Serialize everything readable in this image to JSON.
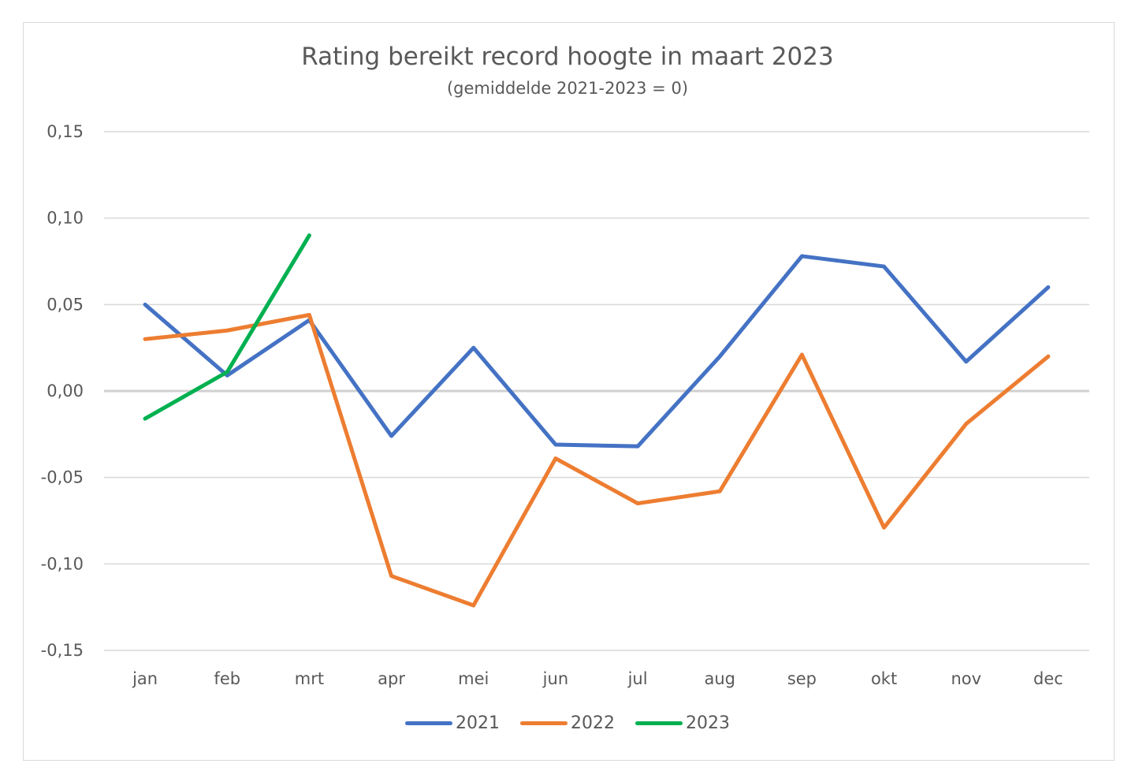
{
  "chart_data": {
    "type": "line",
    "title": "Rating bereikt record hoogte in maart 2023",
    "subtitle": "(gemiddelde 2021-2023 = 0)",
    "categories": [
      "jan",
      "feb",
      "mrt",
      "apr",
      "mei",
      "jun",
      "jul",
      "aug",
      "sep",
      "okt",
      "nov",
      "dec"
    ],
    "ylim": [
      -0.15,
      0.15
    ],
    "yticks": [
      0.15,
      0.1,
      0.05,
      0.0,
      -0.05,
      -0.1,
      -0.15
    ],
    "ytick_labels": [
      "0,15",
      "0,10",
      "0,05",
      "0,00",
      "-0,05",
      "-0,10",
      "-0,15"
    ],
    "grid": true,
    "legend_position": "bottom",
    "series": [
      {
        "name": "2021",
        "color": "#4472c4",
        "values": [
          0.05,
          0.009,
          0.041,
          -0.026,
          0.025,
          -0.031,
          -0.032,
          0.02,
          0.078,
          0.072,
          0.017,
          0.06
        ]
      },
      {
        "name": "2022",
        "color": "#ed7d31",
        "values": [
          0.03,
          0.035,
          0.044,
          -0.107,
          -0.124,
          -0.039,
          -0.065,
          -0.058,
          0.021,
          -0.079,
          -0.019,
          0.02
        ]
      },
      {
        "name": "2023",
        "color": "#00b050",
        "values": [
          -0.016,
          0.011,
          0.09,
          null,
          null,
          null,
          null,
          null,
          null,
          null,
          null,
          null
        ]
      }
    ]
  }
}
